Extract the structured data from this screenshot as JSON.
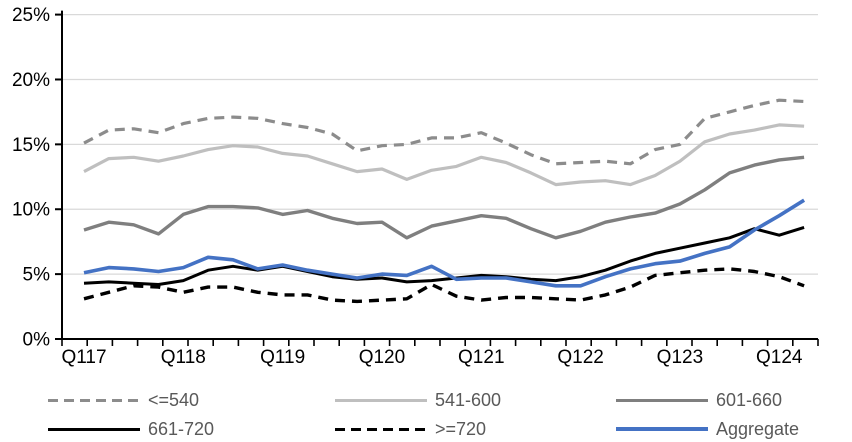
{
  "chart_data": {
    "type": "line",
    "title": "",
    "x_axis": {
      "labels": [
        "Q117",
        "Q118",
        "Q119",
        "Q120",
        "Q121",
        "Q122",
        "Q123",
        "Q124"
      ],
      "points_per_label": 4,
      "n_points": 30
    },
    "y_axis": {
      "min": 0,
      "max": 25,
      "step": 5,
      "tick_labels": [
        "0%",
        "5%",
        "10%",
        "15%",
        "20%",
        "25%"
      ]
    },
    "grid": "horizontal",
    "legend_position": "bottom",
    "colors": {
      "axis": "#000000",
      "gridline": "#d9d9d9",
      "legend_text": "#595959",
      "axis_text": "#000000",
      "accent_blue": "#4472C4"
    },
    "series": [
      {
        "name": "<=540",
        "color": "#8C8C8C",
        "style": "dashed",
        "width": 3.2,
        "values": [
          15.1,
          16.1,
          16.2,
          15.9,
          16.6,
          17.0,
          17.1,
          17.0,
          16.6,
          16.3,
          15.8,
          14.5,
          14.9,
          15.0,
          15.5,
          15.5,
          15.9,
          15.1,
          14.2,
          13.5,
          13.6,
          13.7,
          13.5,
          14.6,
          15.0,
          17.0,
          17.5,
          18.0,
          18.4,
          18.3
        ]
      },
      {
        "name": "541-600",
        "color": "#BFBFBF",
        "style": "solid",
        "width": 3.2,
        "values": [
          12.9,
          13.9,
          14.0,
          13.7,
          14.1,
          14.6,
          14.9,
          14.8,
          14.3,
          14.1,
          13.5,
          12.9,
          13.1,
          12.3,
          13.0,
          13.3,
          14.0,
          13.6,
          12.8,
          11.9,
          12.1,
          12.2,
          11.9,
          12.6,
          13.7,
          15.2,
          15.8,
          16.1,
          16.5,
          16.4
        ]
      },
      {
        "name": "601-660",
        "color": "#7F7F7F",
        "style": "solid",
        "width": 3.4,
        "values": [
          8.4,
          9.0,
          8.8,
          8.1,
          9.6,
          10.2,
          10.2,
          10.1,
          9.6,
          9.9,
          9.3,
          8.9,
          9.0,
          7.8,
          8.7,
          9.1,
          9.5,
          9.3,
          8.5,
          7.8,
          8.3,
          9.0,
          9.4,
          9.7,
          10.4,
          11.5,
          12.8,
          13.4,
          13.8,
          14.0
        ]
      },
      {
        "name": "661-720",
        "color": "#000000",
        "style": "solid",
        "width": 3.0,
        "values": [
          4.3,
          4.4,
          4.3,
          4.2,
          4.5,
          5.3,
          5.6,
          5.3,
          5.6,
          5.2,
          4.8,
          4.6,
          4.7,
          4.4,
          4.5,
          4.7,
          4.9,
          4.8,
          4.6,
          4.5,
          4.8,
          5.3,
          6.0,
          6.6,
          7.0,
          7.4,
          7.8,
          8.5,
          8.0,
          8.6
        ]
      },
      {
        "name": ">=720",
        "color": "#000000",
        "style": "dashed",
        "width": 3.4,
        "values": [
          3.1,
          3.6,
          4.1,
          4.0,
          3.6,
          4.0,
          4.0,
          3.6,
          3.4,
          3.4,
          3.0,
          2.9,
          3.0,
          3.1,
          4.2,
          3.3,
          3.0,
          3.2,
          3.2,
          3.1,
          3.0,
          3.4,
          4.0,
          4.9,
          5.1,
          5.3,
          5.4,
          5.2,
          4.8,
          4.1
        ]
      },
      {
        "name": "Aggregate",
        "color": "#4472C4",
        "style": "solid",
        "width": 3.6,
        "values": [
          5.1,
          5.5,
          5.4,
          5.2,
          5.5,
          6.3,
          6.1,
          5.4,
          5.7,
          5.3,
          5.0,
          4.7,
          5.0,
          4.9,
          5.6,
          4.6,
          4.7,
          4.7,
          4.4,
          4.1,
          4.1,
          4.8,
          5.4,
          5.8,
          6.0,
          6.6,
          7.1,
          8.4,
          9.5,
          10.7
        ]
      }
    ]
  }
}
